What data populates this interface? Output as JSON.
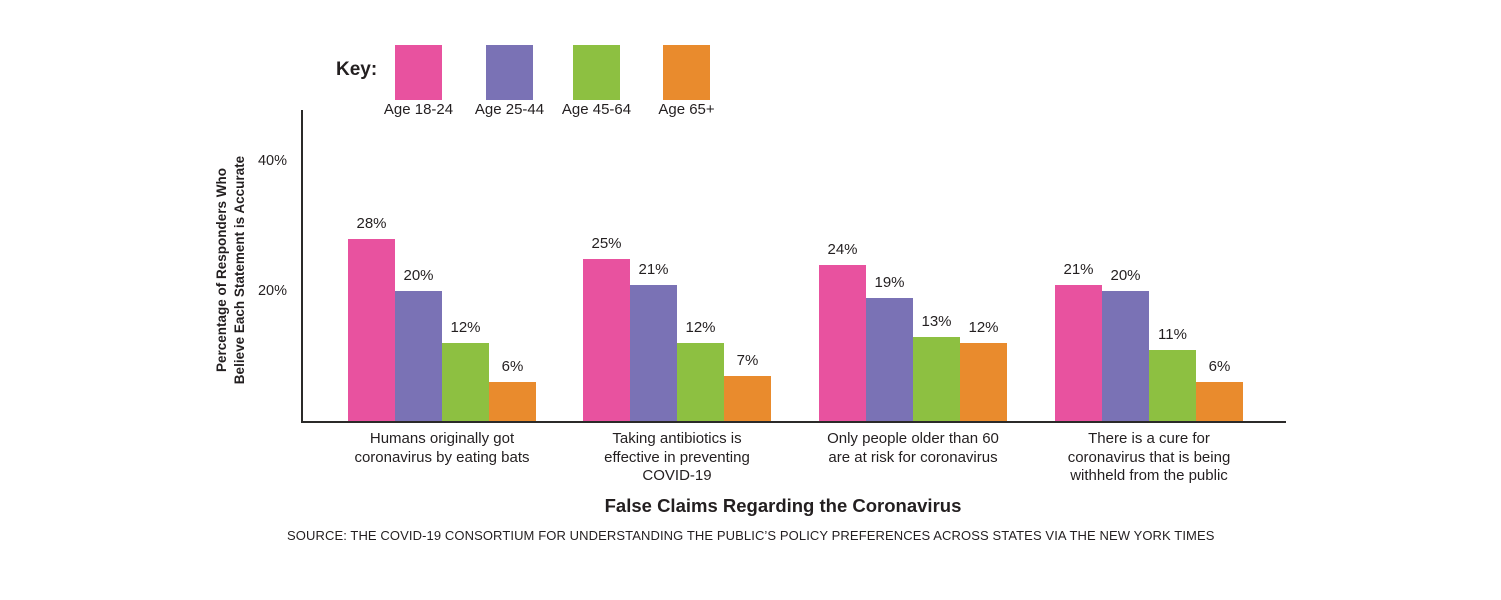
{
  "legend": {
    "title": "Key:"
  },
  "footer": {
    "title": "False Claims Regarding the Coronavirus",
    "source": "SOURCE: THE COVID-19 CONSORTIUM FOR UNDERSTANDING THE PUBLIC’S POLICY PREFERENCES ACROSS STATES VIA THE NEW YORK TIMES"
  },
  "chart_data": {
    "type": "bar",
    "title": "False Claims Regarding the Coronavirus",
    "xlabel": "False Claims Regarding the Coronavirus",
    "ylabel": "Percentage of Responders Who\nBelieve Each Statement is Accurate",
    "ylim": [
      0,
      48
    ],
    "grid": false,
    "legend_position": "top",
    "legend_title": "Key:",
    "value_label_format": "{value}%",
    "y_ticks": [
      {
        "value": 20,
        "label": "20%"
      },
      {
        "value": 40,
        "label": "40%"
      }
    ],
    "categories": [
      "Humans originally got\ncoronavirus by eating bats",
      "Taking antibiotics is\neffective in preventing\nCOVID-19",
      "Only people older than 60\nare at risk for coronavirus",
      "There is a cure for\ncoronavirus that is being\nwithheld from the public"
    ],
    "series": [
      {
        "name": "Age 18-24",
        "color": "#e8529f",
        "values": [
          28,
          25,
          24,
          21
        ]
      },
      {
        "name": "Age 25-44",
        "color": "#7a72b5",
        "values": [
          20,
          21,
          19,
          20
        ]
      },
      {
        "name": "Age 45-64",
        "color": "#8dc041",
        "values": [
          12,
          12,
          13,
          11
        ]
      },
      {
        "name": "Age 65+",
        "color": "#e98b2d",
        "values": [
          6,
          7,
          12,
          6
        ]
      }
    ]
  }
}
